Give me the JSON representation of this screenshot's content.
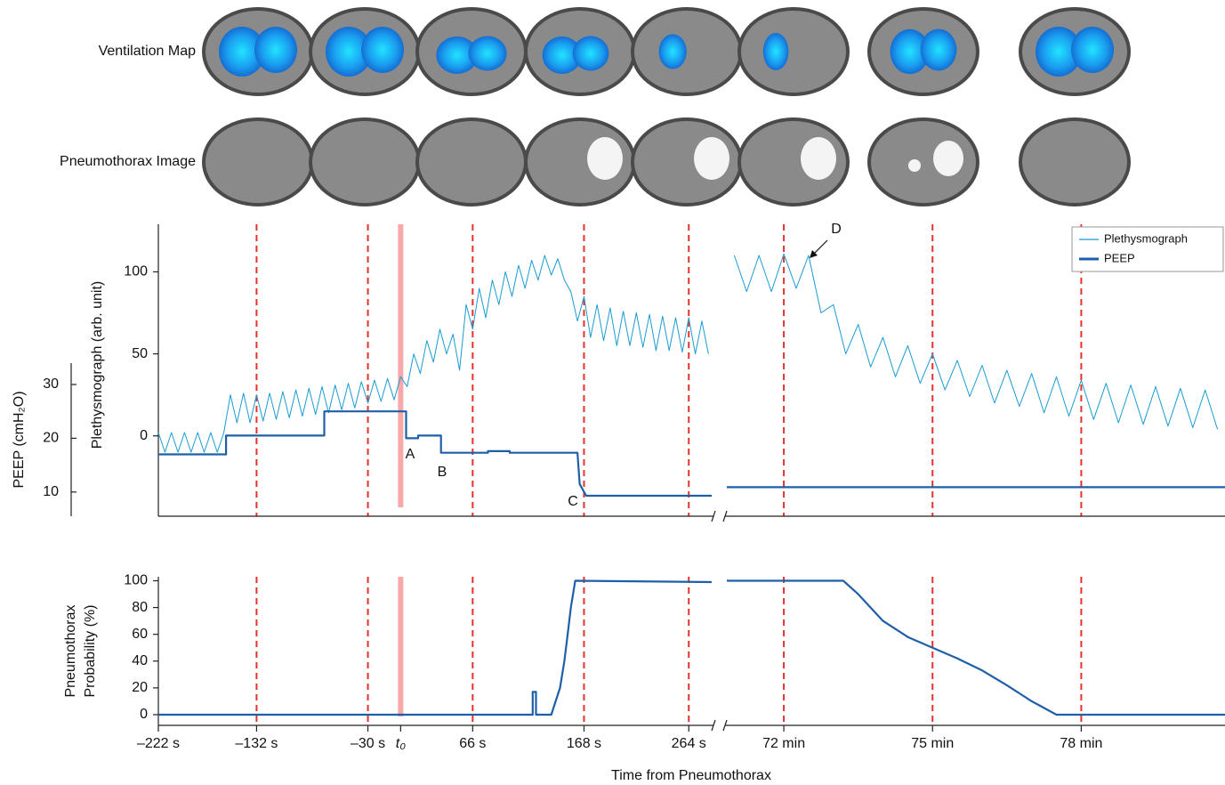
{
  "images": {
    "row_labels": [
      "Ventilation Map",
      "Pneumothorax Image"
    ]
  },
  "chart_data": {
    "type": "line",
    "xlabel": "Time from Pneumothorax",
    "grid": true,
    "grid_color": "#e8312a",
    "highlight_x": 0,
    "highlight_color": "#f7a8a8",
    "x_segments": [
      {
        "xlim": [
          -222,
          285
        ],
        "xticks": [
          {
            "value": -222,
            "label": "–222 s"
          },
          {
            "value": -132,
            "label": "–132 s"
          },
          {
            "value": -30,
            "label": "–30 s"
          },
          {
            "value": 0,
            "label": "t₀"
          },
          {
            "value": 66,
            "label": "66 s"
          },
          {
            "value": 168,
            "label": "168 s"
          },
          {
            "value": 264,
            "label": "264 s"
          }
        ]
      },
      {
        "xlim": [
          70.85,
          80.9
        ],
        "xticks": [
          {
            "value": 72,
            "label": "72 min"
          },
          {
            "value": 75,
            "label": "75 min"
          },
          {
            "value": 78,
            "label": "78 min"
          }
        ]
      }
    ],
    "panels": [
      {
        "ylabel": "Plethysmograph (arb. unit)",
        "ylim": [
          -49,
          129
        ],
        "yticks": [
          0,
          50,
          100
        ],
        "y2label": "PEEP (cmH₂O)",
        "y2lim": [
          5.5,
          59.8
        ],
        "y2ticks": [
          10,
          20,
          30
        ],
        "legend": "upper right",
        "annotations": [
          {
            "text": "A"
          },
          {
            "text": "B"
          },
          {
            "text": "C"
          },
          {
            "text": "D"
          }
        ],
        "series": [
          {
            "name": "Plethysmograph",
            "color": "#1a9bd1",
            "segments": [
              {
                "x": [
                  -222,
                  -216,
                  -210,
                  -204,
                  -198,
                  -192,
                  -186,
                  -180,
                  -174,
                  -168,
                  -162,
                  -156,
                  -150,
                  -144,
                  -138,
                  -132,
                  -126,
                  -120,
                  -114,
                  -108,
                  -102,
                  -96,
                  -90,
                  -84,
                  -78,
                  -72,
                  -66,
                  -60,
                  -54,
                  -48,
                  -42,
                  -36,
                  -30,
                  -24,
                  -18,
                  -12,
                  -6,
                  0,
                  6,
                  12,
                  18,
                  24,
                  30,
                  36,
                  42,
                  48,
                  54,
                  60,
                  66,
                  72,
                  78,
                  84,
                  90,
                  96,
                  102,
                  108,
                  114,
                  120,
                  126,
                  132,
                  138,
                  144,
                  150,
                  156,
                  162,
                  168,
                  174,
                  180,
                  186,
                  192,
                  198,
                  204,
                  210,
                  216,
                  222,
                  228,
                  234,
                  240,
                  246,
                  252,
                  258,
                  264,
                  270,
                  276,
                  282
                ],
                "values": [
                  2,
                  -10,
                  2,
                  -10,
                  2,
                  -10,
                  2,
                  -10,
                  2,
                  -10,
                  2,
                  25,
                  8,
                  26,
                  8,
                  25,
                  9,
                  26,
                  10,
                  27,
                  11,
                  28,
                  12,
                  29,
                  13,
                  30,
                  14,
                  31,
                  16,
                  32,
                  17,
                  33,
                  20,
                  34,
                  21,
                  35,
                  22,
                  36,
                  30,
                  50,
                  38,
                  58,
                  45,
                  65,
                  50,
                  62,
                  40,
                  80,
                  65,
                  90,
                  72,
                  95,
                  80,
                  100,
                  85,
                  104,
                  90,
                  107,
                  95,
                  110,
                  98,
                  108,
                  95,
                  88,
                  70,
                  85,
                  60,
                  80,
                  58,
                  78,
                  55,
                  76,
                  55,
                  75,
                  54,
                  74,
                  52,
                  73,
                  52,
                  72,
                  51,
                  72,
                  50,
                  70,
                  50
                ]
              },
              {
                "x": [
                  71,
                  71.25,
                  71.5,
                  71.75,
                  72,
                  72.25,
                  72.5,
                  72.75,
                  73,
                  73.25,
                  73.5,
                  73.75,
                  74,
                  74.25,
                  74.5,
                  74.75,
                  75,
                  75.25,
                  75.5,
                  75.75,
                  76,
                  76.25,
                  76.5,
                  76.75,
                  77,
                  77.25,
                  77.5,
                  77.75,
                  78,
                  78.25,
                  78.5,
                  78.75,
                  79,
                  79.25,
                  79.5,
                  79.75,
                  80,
                  80.25,
                  80.5,
                  80.75
                ],
                "values": [
                  110,
                  88,
                  110,
                  88,
                  111,
                  90,
                  110,
                  75,
                  80,
                  50,
                  68,
                  42,
                  60,
                  36,
                  55,
                  32,
                  50,
                  28,
                  46,
                  24,
                  43,
                  20,
                  40,
                  18,
                  38,
                  14,
                  36,
                  12,
                  34,
                  10,
                  32,
                  8,
                  31,
                  7,
                  30,
                  6,
                  29,
                  5,
                  28,
                  4
                ]
              }
            ]
          },
          {
            "name": "PEEP",
            "color": "#1f5fa8",
            "axis": "y2",
            "segments": [
              {
                "x": [
                  -222,
                  -160,
                  -160,
                  -70,
                  -70,
                  5,
                  5,
                  16,
                  16,
                  37,
                  37,
                  80,
                  80,
                  100,
                  100,
                  162,
                  164,
                  170,
                  285
                ],
                "values": [
                  17,
                  17,
                  20.5,
                  20.5,
                  25,
                  25,
                  20,
                  20,
                  20.5,
                  20.5,
                  17.3,
                  17.3,
                  17.6,
                  17.6,
                  17.3,
                  17.3,
                  11.5,
                  9.3,
                  9.3
                ]
              },
              {
                "x": [
                  70.85,
                  80.9
                ],
                "values": [
                  10.9,
                  10.9
                ]
              }
            ]
          }
        ]
      },
      {
        "ylabel": [
          "Pneumothorax",
          "Probability (%)"
        ],
        "ylim": [
          -8,
          103
        ],
        "yticks": [
          0,
          20,
          40,
          60,
          80,
          100
        ],
        "series": [
          {
            "color": "#1f5fa8",
            "segments": [
              {
                "x": [
                  -222,
                  121,
                  121,
                  124,
                  124,
                  138,
                  142,
                  146,
                  150,
                  153,
                  156,
                  160,
                  160,
                  285
                ],
                "values": [
                  0,
                  0,
                  17,
                  17,
                  0,
                  0,
                  10,
                  20,
                  40,
                  60,
                  80,
                  100,
                  100,
                  99
                ]
              },
              {
                "x": [
                  70.85,
                  73.2,
                  73.5,
                  74,
                  74.5,
                  75,
                  75.5,
                  76,
                  76.5,
                  77,
                  77.5,
                  80.9
                ],
                "values": [
                  100,
                  100,
                  90,
                  70,
                  58,
                  50,
                  42,
                  33,
                  22,
                  10,
                  0,
                  0
                ]
              }
            ]
          }
        ]
      }
    ]
  }
}
